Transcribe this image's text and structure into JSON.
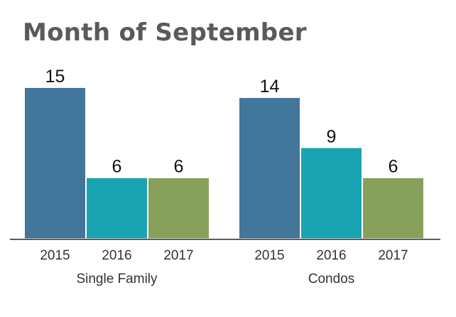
{
  "chart_data": {
    "type": "bar",
    "title": "Month of September",
    "groups": [
      {
        "name": "Single Family",
        "categories": [
          "2015",
          "2016",
          "2017"
        ],
        "values": [
          15,
          6,
          6
        ]
      },
      {
        "name": "Condos",
        "categories": [
          "2015",
          "2016",
          "2017"
        ],
        "values": [
          14,
          9,
          6
        ]
      }
    ],
    "colors": [
      "#42769a",
      "#1aa3b1",
      "#87a15d"
    ],
    "ylim": [
      0,
      15
    ],
    "grid": false,
    "legend": "none"
  }
}
